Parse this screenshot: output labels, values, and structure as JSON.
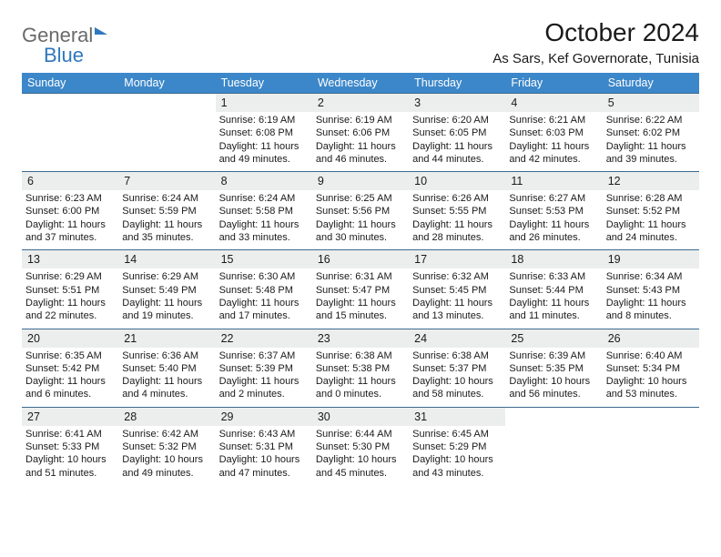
{
  "logo": {
    "line1": "General",
    "line2": "Blue"
  },
  "title": {
    "month": "October 2024",
    "location": "As Sars, Kef Governorate, Tunisia"
  },
  "colors": {
    "header_bg": "#3c87c9",
    "header_text": "#ffffff",
    "daynum_bg": "#eceeed",
    "border": "#3c6a8f",
    "logo_blue": "#2f78bd",
    "logo_gray": "#6a6a6a"
  },
  "weekdays": [
    "Sunday",
    "Monday",
    "Tuesday",
    "Wednesday",
    "Thursday",
    "Friday",
    "Saturday"
  ],
  "weeks": [
    [
      null,
      null,
      {
        "n": "1",
        "sr": "6:19 AM",
        "ss": "6:08 PM",
        "dl": "11 hours and 49 minutes."
      },
      {
        "n": "2",
        "sr": "6:19 AM",
        "ss": "6:06 PM",
        "dl": "11 hours and 46 minutes."
      },
      {
        "n": "3",
        "sr": "6:20 AM",
        "ss": "6:05 PM",
        "dl": "11 hours and 44 minutes."
      },
      {
        "n": "4",
        "sr": "6:21 AM",
        "ss": "6:03 PM",
        "dl": "11 hours and 42 minutes."
      },
      {
        "n": "5",
        "sr": "6:22 AM",
        "ss": "6:02 PM",
        "dl": "11 hours and 39 minutes."
      }
    ],
    [
      {
        "n": "6",
        "sr": "6:23 AM",
        "ss": "6:00 PM",
        "dl": "11 hours and 37 minutes."
      },
      {
        "n": "7",
        "sr": "6:24 AM",
        "ss": "5:59 PM",
        "dl": "11 hours and 35 minutes."
      },
      {
        "n": "8",
        "sr": "6:24 AM",
        "ss": "5:58 PM",
        "dl": "11 hours and 33 minutes."
      },
      {
        "n": "9",
        "sr": "6:25 AM",
        "ss": "5:56 PM",
        "dl": "11 hours and 30 minutes."
      },
      {
        "n": "10",
        "sr": "6:26 AM",
        "ss": "5:55 PM",
        "dl": "11 hours and 28 minutes."
      },
      {
        "n": "11",
        "sr": "6:27 AM",
        "ss": "5:53 PM",
        "dl": "11 hours and 26 minutes."
      },
      {
        "n": "12",
        "sr": "6:28 AM",
        "ss": "5:52 PM",
        "dl": "11 hours and 24 minutes."
      }
    ],
    [
      {
        "n": "13",
        "sr": "6:29 AM",
        "ss": "5:51 PM",
        "dl": "11 hours and 22 minutes."
      },
      {
        "n": "14",
        "sr": "6:29 AM",
        "ss": "5:49 PM",
        "dl": "11 hours and 19 minutes."
      },
      {
        "n": "15",
        "sr": "6:30 AM",
        "ss": "5:48 PM",
        "dl": "11 hours and 17 minutes."
      },
      {
        "n": "16",
        "sr": "6:31 AM",
        "ss": "5:47 PM",
        "dl": "11 hours and 15 minutes."
      },
      {
        "n": "17",
        "sr": "6:32 AM",
        "ss": "5:45 PM",
        "dl": "11 hours and 13 minutes."
      },
      {
        "n": "18",
        "sr": "6:33 AM",
        "ss": "5:44 PM",
        "dl": "11 hours and 11 minutes."
      },
      {
        "n": "19",
        "sr": "6:34 AM",
        "ss": "5:43 PM",
        "dl": "11 hours and 8 minutes."
      }
    ],
    [
      {
        "n": "20",
        "sr": "6:35 AM",
        "ss": "5:42 PM",
        "dl": "11 hours and 6 minutes."
      },
      {
        "n": "21",
        "sr": "6:36 AM",
        "ss": "5:40 PM",
        "dl": "11 hours and 4 minutes."
      },
      {
        "n": "22",
        "sr": "6:37 AM",
        "ss": "5:39 PM",
        "dl": "11 hours and 2 minutes."
      },
      {
        "n": "23",
        "sr": "6:38 AM",
        "ss": "5:38 PM",
        "dl": "11 hours and 0 minutes."
      },
      {
        "n": "24",
        "sr": "6:38 AM",
        "ss": "5:37 PM",
        "dl": "10 hours and 58 minutes."
      },
      {
        "n": "25",
        "sr": "6:39 AM",
        "ss": "5:35 PM",
        "dl": "10 hours and 56 minutes."
      },
      {
        "n": "26",
        "sr": "6:40 AM",
        "ss": "5:34 PM",
        "dl": "10 hours and 53 minutes."
      }
    ],
    [
      {
        "n": "27",
        "sr": "6:41 AM",
        "ss": "5:33 PM",
        "dl": "10 hours and 51 minutes."
      },
      {
        "n": "28",
        "sr": "6:42 AM",
        "ss": "5:32 PM",
        "dl": "10 hours and 49 minutes."
      },
      {
        "n": "29",
        "sr": "6:43 AM",
        "ss": "5:31 PM",
        "dl": "10 hours and 47 minutes."
      },
      {
        "n": "30",
        "sr": "6:44 AM",
        "ss": "5:30 PM",
        "dl": "10 hours and 45 minutes."
      },
      {
        "n": "31",
        "sr": "6:45 AM",
        "ss": "5:29 PM",
        "dl": "10 hours and 43 minutes."
      },
      null,
      null
    ]
  ],
  "labels": {
    "sunrise": "Sunrise:",
    "sunset": "Sunset:",
    "daylight": "Daylight:"
  }
}
